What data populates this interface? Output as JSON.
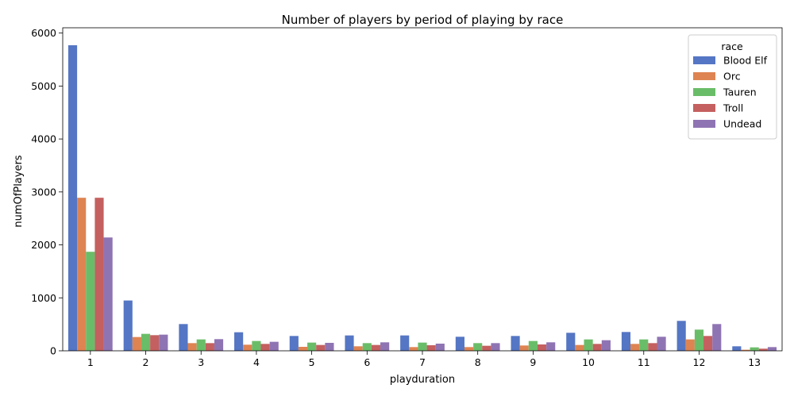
{
  "chart_data": {
    "type": "bar",
    "title": "Number of players by period of playing by race",
    "xlabel": "playduration",
    "ylabel": "numOfPlayers",
    "ylim": [
      0,
      6100
    ],
    "yticks": [
      0,
      1000,
      2000,
      3000,
      4000,
      5000,
      6000
    ],
    "grid": false,
    "legend": {
      "title": "race",
      "placement": "top-right"
    },
    "categories": [
      "1",
      "2",
      "3",
      "4",
      "5",
      "6",
      "7",
      "8",
      "9",
      "10",
      "11",
      "12",
      "13"
    ],
    "series": [
      {
        "name": "Blood Elf",
        "color": "#5576c4",
        "values": [
          5770,
          950,
          505,
          350,
          280,
          290,
          290,
          265,
          280,
          340,
          355,
          565,
          85
        ]
      },
      {
        "name": "Orc",
        "color": "#de8452",
        "values": [
          2890,
          260,
          145,
          115,
          75,
          85,
          70,
          70,
          100,
          110,
          130,
          215,
          20
        ]
      },
      {
        "name": "Tauren",
        "color": "#6abd68",
        "values": [
          1870,
          320,
          215,
          185,
          155,
          145,
          155,
          145,
          185,
          215,
          215,
          400,
          65
        ]
      },
      {
        "name": "Troll",
        "color": "#c4605f",
        "values": [
          2890,
          295,
          145,
          130,
          110,
          110,
          105,
          95,
          120,
          130,
          145,
          280,
          40
        ]
      },
      {
        "name": "Undead",
        "color": "#8f74b3",
        "values": [
          2140,
          305,
          220,
          170,
          150,
          160,
          135,
          145,
          160,
          200,
          265,
          505,
          70
        ]
      }
    ]
  }
}
